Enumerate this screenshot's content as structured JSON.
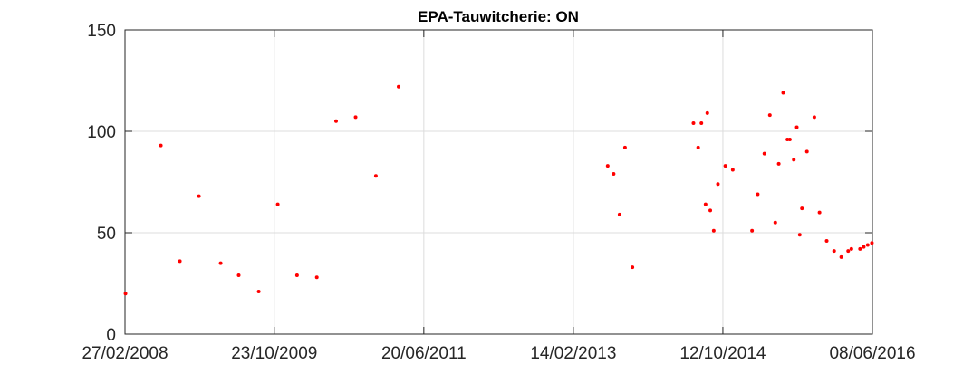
{
  "chart_data": {
    "type": "scatter",
    "title": "EPA-Tauwitcherie: ON",
    "xlabel": "",
    "ylabel": "",
    "x_type": "date",
    "xlim": [
      "2008-02-27",
      "2016-06-08"
    ],
    "ylim": [
      0,
      150
    ],
    "x_ticks": [
      "2008-02-27",
      "2009-10-23",
      "2011-06-20",
      "2013-02-14",
      "2014-10-12",
      "2016-06-08"
    ],
    "x_tick_labels": [
      "27/02/2008",
      "23/10/2009",
      "20/06/2011",
      "14/02/2013",
      "12/10/2014",
      "08/06/2016"
    ],
    "y_ticks": [
      0,
      50,
      100,
      150
    ],
    "y_tick_labels": [
      "0",
      "50",
      "100",
      "150"
    ],
    "grid": true,
    "legend": "none",
    "marker_color": "#ff0000",
    "series": [
      {
        "x": [
          "2008-02-29",
          "2008-07-21",
          "2008-10-06",
          "2008-12-22",
          "2009-03-20",
          "2009-06-01",
          "2009-08-21",
          "2009-11-06",
          "2010-01-23",
          "2010-04-13",
          "2010-06-30",
          "2010-09-17",
          "2010-12-08",
          "2011-03-10",
          "2013-07-03",
          "2013-07-27",
          "2013-08-20",
          "2013-09-11",
          "2013-10-11",
          "2014-06-15",
          "2014-07-04",
          "2014-07-17",
          "2014-08-03",
          "2014-08-10",
          "2014-08-22",
          "2014-09-05",
          "2014-09-22",
          "2014-10-22",
          "2014-11-21",
          "2015-02-07",
          "2015-03-02",
          "2015-03-29",
          "2015-04-20",
          "2015-05-12",
          "2015-05-26",
          "2015-06-13",
          "2015-06-30",
          "2015-07-10",
          "2015-07-26",
          "2015-08-07",
          "2015-08-19",
          "2015-08-28",
          "2015-09-17",
          "2015-10-17",
          "2015-11-07",
          "2015-12-06",
          "2016-01-05",
          "2016-02-03",
          "2016-03-02",
          "2016-03-15",
          "2016-04-19",
          "2016-05-04",
          "2016-05-20",
          "2016-06-06"
        ],
        "y": [
          20,
          93,
          36,
          68,
          35,
          29,
          21,
          64,
          29,
          28,
          105,
          107,
          78,
          122,
          83,
          79,
          59,
          92,
          33,
          104,
          92,
          104,
          64,
          109,
          61,
          51,
          74,
          83,
          81,
          51,
          69,
          89,
          108,
          55,
          84,
          119,
          96,
          96,
          86,
          102,
          49,
          62,
          90,
          107,
          60,
          46,
          41,
          38,
          41,
          42,
          42,
          43,
          44,
          45
        ]
      }
    ]
  }
}
